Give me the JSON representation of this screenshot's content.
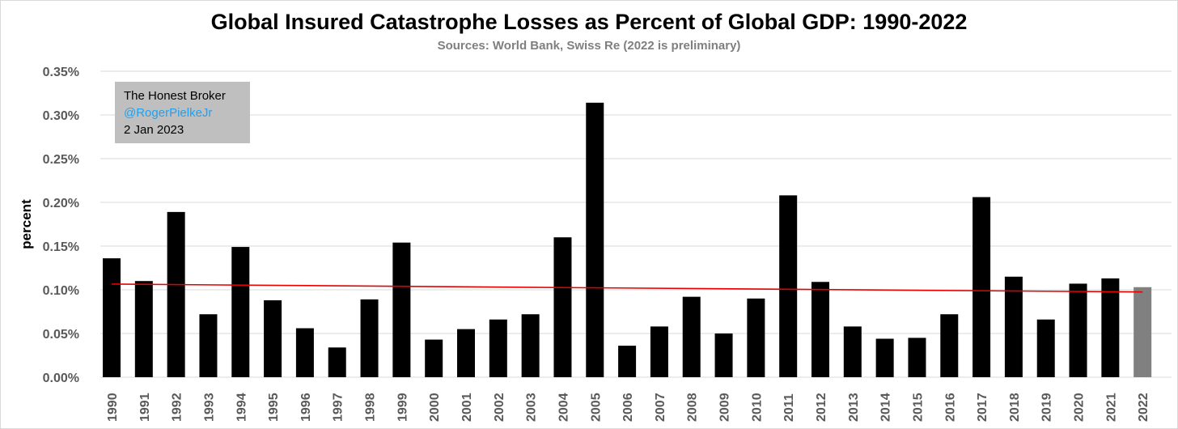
{
  "colors": {
    "bar": "#000000",
    "bar_preliminary": "#808080",
    "trend": "#e60000",
    "grid": "#d9d9d9",
    "watermark_bg": "#bfbfbf",
    "handle": "#1ea1f2"
  },
  "watermark": {
    "line1": "The Honest Broker",
    "line2": "@RogerPielkeJr",
    "line3": "2 Jan 2023"
  },
  "chart_data": {
    "type": "bar",
    "title": "Global Insured Catastrophe Losses as Percent of Global GDP: 1990-2022",
    "subtitle": "Sources: World Bank, Swiss Re (2022 is preliminary)",
    "xlabel": "",
    "ylabel": "percent",
    "ylim": [
      0,
      0.35
    ],
    "yticks": [
      0,
      0.05,
      0.1,
      0.15,
      0.2,
      0.25,
      0.3,
      0.35
    ],
    "ytick_labels": [
      "0.00%",
      "0.05%",
      "0.10%",
      "0.15%",
      "0.20%",
      "0.25%",
      "0.30%",
      "0.35%"
    ],
    "grid": true,
    "legend": "none",
    "categories": [
      "1990",
      "1991",
      "1992",
      "1993",
      "1994",
      "1995",
      "1996",
      "1997",
      "1998",
      "1999",
      "2000",
      "2001",
      "2002",
      "2003",
      "2004",
      "2005",
      "2006",
      "2007",
      "2008",
      "2009",
      "2010",
      "2011",
      "2012",
      "2013",
      "2014",
      "2015",
      "2016",
      "2017",
      "2018",
      "2019",
      "2020",
      "2021",
      "2022"
    ],
    "values": [
      0.136,
      0.11,
      0.189,
      0.072,
      0.149,
      0.088,
      0.056,
      0.034,
      0.089,
      0.154,
      0.043,
      0.055,
      0.066,
      0.072,
      0.16,
      0.314,
      0.036,
      0.058,
      0.092,
      0.05,
      0.09,
      0.208,
      0.109,
      0.058,
      0.044,
      0.045,
      0.072,
      0.206,
      0.115,
      0.066,
      0.107,
      0.113,
      0.103
    ],
    "highlighted_category": "2022",
    "trendline": {
      "type": "linear",
      "start": 0.1065,
      "end": 0.0975
    }
  }
}
